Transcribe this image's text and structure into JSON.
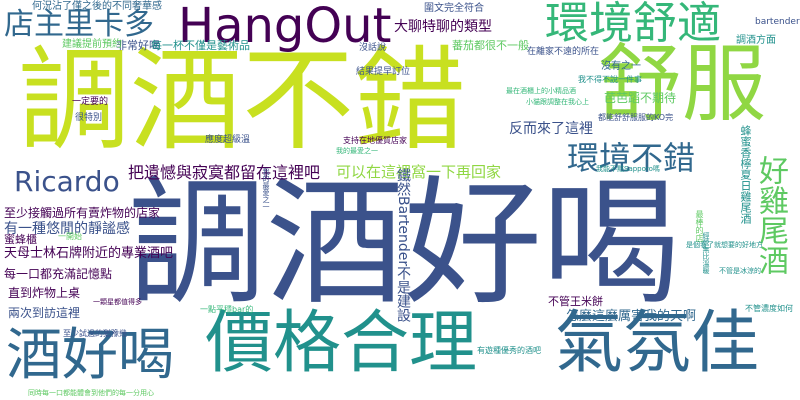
{
  "palette": {
    "background": "#ffffff",
    "dark_purple": "#440154",
    "indigo": "#3b528b",
    "blue": "#31688e",
    "teal": "#21918c",
    "green": "#35b779",
    "light_green": "#5ec962",
    "lime": "#90d743",
    "yellow": "#c8e020",
    "bright_yellow": "#fde725"
  },
  "words": [
    {
      "text": "調酒好喝",
      "weight": 100,
      "color": "#3b528b"
    },
    {
      "text": "調酒不錯",
      "weight": 92,
      "color": "#c8e020"
    },
    {
      "text": "舒服",
      "weight": 80,
      "color": "#90d743"
    },
    {
      "text": "價格合理",
      "weight": 72,
      "color": "#21918c"
    },
    {
      "text": "氣氛佳",
      "weight": 70,
      "color": "#31688e"
    },
    {
      "text": "酒好喝",
      "weight": 60,
      "color": "#31688e"
    },
    {
      "text": "HangOut",
      "weight": 56,
      "color": "#440154"
    },
    {
      "text": "環境舒適",
      "weight": 50,
      "color": "#35b779"
    },
    {
      "text": "店主里卡多",
      "weight": 44,
      "color": "#31688e"
    },
    {
      "text": "環境不錯",
      "weight": 38,
      "color": "#31688e"
    },
    {
      "text": "好雞尾酒",
      "weight": 34,
      "color": "#5ec962"
    },
    {
      "text": "Ricardo",
      "weight": 32,
      "color": "#3b528b"
    },
    {
      "text": "把遺憾與寂寞都留在這裡吧",
      "weight": 22,
      "color": "#440154"
    },
    {
      "text": "可以在這裡窩一下再回家",
      "weight": 20,
      "color": "#90d743"
    },
    {
      "text": "鐵然Bartender不是建設",
      "weight": 18,
      "color": "#3b528b"
    },
    {
      "text": "反而來了這裡",
      "weight": 18,
      "color": "#3b528b"
    },
    {
      "text": "怎麼這麼厲害我的天啊",
      "weight": 17,
      "color": "#31688e"
    },
    {
      "text": "天母士林石牌附近的專業酒吧",
      "weight": 17,
      "color": "#440154"
    },
    {
      "text": "有一種悠閒的靜謐感",
      "weight": 17,
      "color": "#3b528b"
    },
    {
      "text": "至少接觸過所有賣炸物的店家",
      "weight": 16,
      "color": "#440154"
    },
    {
      "text": "每一口都充滿記憶點",
      "weight": 16,
      "color": "#440154"
    },
    {
      "text": "直到炸物上桌",
      "weight": 16,
      "color": "#440154"
    },
    {
      "text": "兩次到訪這裡",
      "weight": 15,
      "color": "#3b528b"
    },
    {
      "text": "蜂蜜香檸夏日雞尾酒",
      "weight": 15,
      "color": "#21918c"
    },
    {
      "text": "大聊特聊的類型",
      "weight": 16,
      "color": "#440154"
    },
    {
      "text": "非常好喝",
      "weight": 14,
      "color": "#3b528b"
    },
    {
      "text": "每一杯不僅是藝術品",
      "weight": 13,
      "color": "#21918c"
    },
    {
      "text": "芭芭蹈不期待",
      "weight": 13,
      "color": "#5ec962"
    },
    {
      "text": "不管王米餅",
      "weight": 12,
      "color": "#440154"
    },
    {
      "text": "蕃茄都很不一般",
      "weight": 12,
      "color": "#5ec962"
    },
    {
      "text": "蜜蜂櫃",
      "weight": 12,
      "color": "#440154"
    },
    {
      "text": "沒有之一",
      "weight": 11,
      "color": "#31688e"
    },
    {
      "text": "建議提前預約",
      "weight": 11,
      "color": "#5ec962"
    },
    {
      "text": "調酒方面",
      "weight": 10,
      "color": "#21918c"
    },
    {
      "text": "何況沾了僅之後的不同奢華感",
      "weight": 9,
      "color": "#31688e"
    },
    {
      "text": "圍文完全符合",
      "weight": 9,
      "color": "#3b528b"
    },
    {
      "text": "bartender",
      "weight": 9,
      "color": "#3b528b"
    },
    {
      "text": "在離家不遠的所在",
      "weight": 8,
      "color": "#3b528b"
    },
    {
      "text": "沒話說",
      "weight": 8,
      "color": "#3b528b"
    },
    {
      "text": "結果提早訂位",
      "weight": 8,
      "color": "#3b528b"
    },
    {
      "text": "我不得不說一件事",
      "weight": 8,
      "color": "#21918c"
    },
    {
      "text": "一定要的",
      "weight": 8,
      "color": "#440154"
    },
    {
      "text": "很特別",
      "weight": 8,
      "color": "#3b528b"
    },
    {
      "text": "支持在地優質店家",
      "weight": 8,
      "color": "#440154"
    },
    {
      "text": "都能舒舒服服的KO完",
      "weight": 8,
      "color": "#3b528b"
    },
    {
      "text": "應度超級溫",
      "weight": 8,
      "color": "#3b528b"
    },
    {
      "text": "有遊種優秀的酒吧",
      "weight": 8,
      "color": "#21918c"
    },
    {
      "text": "不管濃度如何",
      "weight": 8,
      "color": "#21918c"
    },
    {
      "text": "一開始",
      "weight": 8,
      "color": "#5ec962"
    },
    {
      "text": "最棒的店",
      "weight": 8,
      "color": "#5ec962"
    },
    {
      "text": "至少試過的猶豫幾",
      "weight": 7,
      "color": "#3b528b"
    },
    {
      "text": "一點平穩bar的",
      "weight": 7,
      "color": "#35b779"
    },
    {
      "text": "一顆星都值得多",
      "weight": 7,
      "color": "#440154"
    },
    {
      "text": "同時每一口都能體會到他們的每一分用心",
      "weight": 7,
      "color": "#5ec962"
    },
    {
      "text": "我能不點Sapporo嗎",
      "weight": 7,
      "color": "#21918c"
    },
    {
      "text": "經營無比溫暖",
      "weight": 7,
      "color": "#21918c"
    },
    {
      "text": "我的最愛之一",
      "weight": 7,
      "color": "#3b528b"
    },
    {
      "text": "不管是冰涼的",
      "weight": 7,
      "color": "#21918c"
    },
    {
      "text": "最在酒櫃上的小精品酒",
      "weight": 7,
      "color": "#35b779"
    },
    {
      "text": "小貓跟調整在我心上",
      "weight": 7,
      "color": "#35b779"
    },
    {
      "text": "是個看了就想要的好地方",
      "weight": 7,
      "color": "#21918c"
    },
    {
      "text": "我的最愛之一",
      "weight": 7,
      "color": "#35b779"
    }
  ]
}
